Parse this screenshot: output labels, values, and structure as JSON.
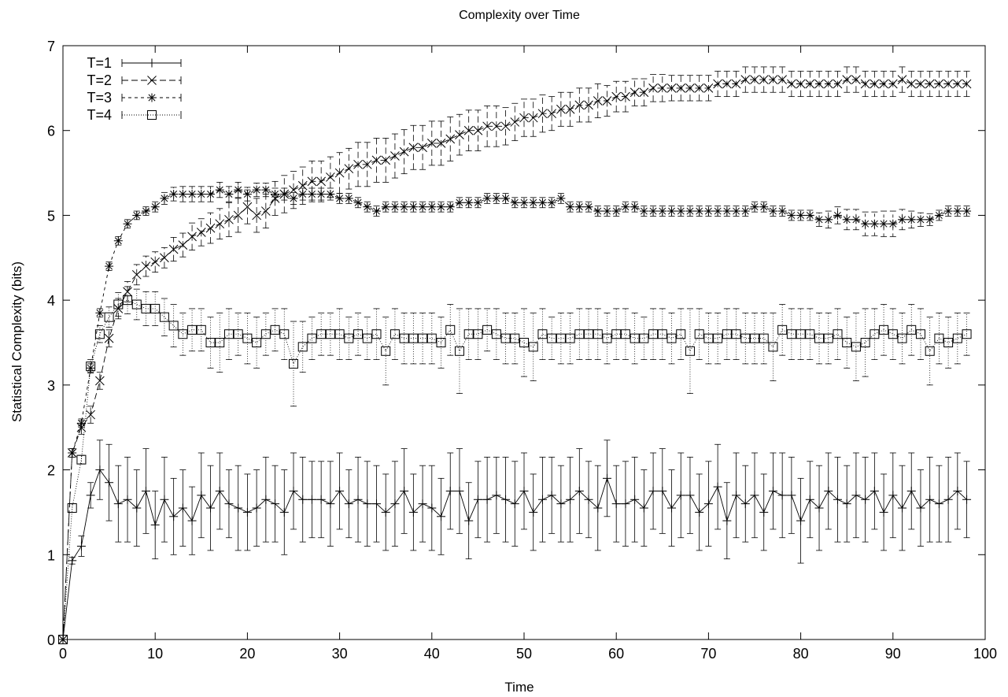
{
  "chart_data": {
    "type": "line",
    "title": "Complexity over Time",
    "xlabel": "Time",
    "ylabel": "Statistical Complexity (bits)",
    "xlim": [
      0,
      100
    ],
    "ylim": [
      0,
      7
    ],
    "xticks": [
      "0",
      "10",
      "20",
      "30",
      "40",
      "50",
      "60",
      "70",
      "80",
      "90",
      "100"
    ],
    "yticks": [
      "0",
      "1",
      "2",
      "3",
      "4",
      "5",
      "6",
      "7"
    ],
    "grid": false,
    "legend_position": "top-left",
    "series": [
      {
        "name": "T=1",
        "marker": "plus",
        "dash": "solid",
        "x": [
          0,
          1,
          2,
          3,
          4,
          5,
          6,
          7,
          8,
          9,
          10,
          11,
          12,
          13,
          14,
          15,
          16,
          17,
          18,
          19,
          20,
          21,
          22,
          23,
          24,
          25,
          26,
          27,
          28,
          29,
          30,
          31,
          32,
          33,
          34,
          35,
          36,
          37,
          38,
          39,
          40,
          41,
          42,
          43,
          44,
          45,
          46,
          47,
          48,
          49,
          50,
          51,
          52,
          53,
          54,
          55,
          56,
          57,
          58,
          59,
          60,
          61,
          62,
          63,
          64,
          65,
          66,
          67,
          68,
          69,
          70,
          71,
          72,
          73,
          74,
          75,
          76,
          77,
          78,
          79,
          80,
          81,
          82,
          83,
          84,
          85,
          86,
          87,
          88,
          89,
          90,
          91,
          92,
          93,
          94,
          95,
          96,
          97,
          98
        ],
        "y": [
          0.0,
          0.93,
          1.1,
          1.7,
          2.0,
          1.85,
          1.6,
          1.65,
          1.55,
          1.75,
          1.35,
          1.65,
          1.45,
          1.55,
          1.4,
          1.7,
          1.55,
          1.75,
          1.6,
          1.55,
          1.5,
          1.55,
          1.65,
          1.6,
          1.5,
          1.75,
          1.65,
          1.65,
          1.65,
          1.6,
          1.75,
          1.6,
          1.65,
          1.6,
          1.6,
          1.5,
          1.6,
          1.75,
          1.5,
          1.6,
          1.55,
          1.45,
          1.75,
          1.75,
          1.4,
          1.65,
          1.65,
          1.7,
          1.65,
          1.6,
          1.75,
          1.5,
          1.65,
          1.7,
          1.6,
          1.65,
          1.75,
          1.65,
          1.55,
          1.9,
          1.6,
          1.6,
          1.65,
          1.55,
          1.75,
          1.75,
          1.55,
          1.7,
          1.7,
          1.5,
          1.6,
          1.8,
          1.4,
          1.7,
          1.6,
          1.7,
          1.5,
          1.75,
          1.7,
          1.7,
          1.4,
          1.65,
          1.55,
          1.75,
          1.65,
          1.6,
          1.7,
          1.65,
          1.75,
          1.5,
          1.7,
          1.55,
          1.75,
          1.55,
          1.65,
          1.6,
          1.65,
          1.75,
          1.65
        ],
        "err": [
          0.0,
          0.04,
          0.12,
          0.15,
          0.35,
          0.45,
          0.45,
          0.5,
          0.45,
          0.5,
          0.4,
          0.5,
          0.45,
          0.45,
          0.4,
          0.5,
          0.5,
          0.45,
          0.4,
          0.5,
          0.45,
          0.45,
          0.5,
          0.45,
          0.5,
          0.45,
          0.5,
          0.45,
          0.45,
          0.5,
          0.45,
          0.4,
          0.5,
          0.5,
          0.45,
          0.45,
          0.5,
          0.5,
          0.45,
          0.45,
          0.5,
          0.45,
          0.45,
          0.5,
          0.45,
          0.45,
          0.5,
          0.45,
          0.5,
          0.5,
          0.45,
          0.45,
          0.5,
          0.45,
          0.45,
          0.5,
          0.5,
          0.45,
          0.5,
          0.45,
          0.45,
          0.5,
          0.5,
          0.45,
          0.45,
          0.5,
          0.45,
          0.5,
          0.45,
          0.45,
          0.5,
          0.5,
          0.45,
          0.5,
          0.45,
          0.5,
          0.45,
          0.45,
          0.5,
          0.45,
          0.5,
          0.45,
          0.5,
          0.45,
          0.5,
          0.45,
          0.5,
          0.5,
          0.45,
          0.45,
          0.5,
          0.5,
          0.45,
          0.45,
          0.5,
          0.45,
          0.5,
          0.45,
          0.45
        ]
      },
      {
        "name": "T=2",
        "marker": "cross",
        "dash": "long",
        "x": [
          0,
          1,
          2,
          3,
          4,
          5,
          6,
          7,
          8,
          9,
          10,
          11,
          12,
          13,
          14,
          15,
          16,
          17,
          18,
          19,
          20,
          21,
          22,
          23,
          24,
          25,
          26,
          27,
          28,
          29,
          30,
          31,
          32,
          33,
          34,
          35,
          36,
          37,
          38,
          39,
          40,
          41,
          42,
          43,
          44,
          45,
          46,
          47,
          48,
          49,
          50,
          51,
          52,
          53,
          54,
          55,
          56,
          57,
          58,
          59,
          60,
          61,
          62,
          63,
          64,
          65,
          66,
          67,
          68,
          69,
          70,
          71,
          72,
          73,
          74,
          75,
          76,
          77,
          78,
          79,
          80,
          81,
          82,
          83,
          84,
          85,
          86,
          87,
          88,
          89,
          90,
          91,
          92,
          93,
          94,
          95,
          96,
          97,
          98
        ],
        "y": [
          0.0,
          2.2,
          2.5,
          2.65,
          3.05,
          3.55,
          3.9,
          4.1,
          4.3,
          4.4,
          4.45,
          4.5,
          4.6,
          4.65,
          4.75,
          4.8,
          4.85,
          4.9,
          4.95,
          5.0,
          5.1,
          5.0,
          5.05,
          5.2,
          5.25,
          5.3,
          5.35,
          5.4,
          5.4,
          5.45,
          5.5,
          5.55,
          5.6,
          5.6,
          5.65,
          5.65,
          5.7,
          5.75,
          5.8,
          5.8,
          5.85,
          5.85,
          5.9,
          5.95,
          6.0,
          6.0,
          6.05,
          6.05,
          6.05,
          6.1,
          6.15,
          6.15,
          6.2,
          6.2,
          6.25,
          6.25,
          6.3,
          6.3,
          6.35,
          6.35,
          6.4,
          6.4,
          6.45,
          6.45,
          6.5,
          6.5,
          6.5,
          6.5,
          6.5,
          6.5,
          6.5,
          6.55,
          6.55,
          6.55,
          6.6,
          6.6,
          6.6,
          6.6,
          6.6,
          6.55,
          6.55,
          6.55,
          6.55,
          6.55,
          6.55,
          6.6,
          6.6,
          6.55,
          6.55,
          6.55,
          6.55,
          6.6,
          6.55,
          6.55,
          6.55,
          6.55,
          6.55,
          6.55,
          6.55
        ],
        "err": [
          0.0,
          0.05,
          0.08,
          0.1,
          0.1,
          0.1,
          0.12,
          0.12,
          0.12,
          0.12,
          0.12,
          0.12,
          0.14,
          0.14,
          0.16,
          0.16,
          0.18,
          0.18,
          0.2,
          0.2,
          0.2,
          0.2,
          0.2,
          0.2,
          0.22,
          0.22,
          0.22,
          0.24,
          0.24,
          0.24,
          0.24,
          0.24,
          0.26,
          0.26,
          0.26,
          0.26,
          0.26,
          0.26,
          0.26,
          0.26,
          0.26,
          0.26,
          0.26,
          0.24,
          0.24,
          0.24,
          0.24,
          0.24,
          0.22,
          0.22,
          0.22,
          0.22,
          0.22,
          0.2,
          0.2,
          0.2,
          0.2,
          0.2,
          0.2,
          0.18,
          0.18,
          0.18,
          0.16,
          0.16,
          0.16,
          0.16,
          0.15,
          0.15,
          0.15,
          0.15,
          0.15,
          0.15,
          0.15,
          0.15,
          0.15,
          0.15,
          0.15,
          0.15,
          0.15,
          0.15,
          0.15,
          0.15,
          0.15,
          0.15,
          0.15,
          0.15,
          0.15,
          0.15,
          0.15,
          0.15,
          0.15,
          0.15,
          0.15,
          0.15,
          0.15,
          0.15,
          0.15,
          0.15,
          0.15
        ]
      },
      {
        "name": "T=3",
        "marker": "star",
        "dash": "short",
        "x": [
          0,
          1,
          2,
          3,
          4,
          5,
          6,
          7,
          8,
          9,
          10,
          11,
          12,
          13,
          14,
          15,
          16,
          17,
          18,
          19,
          20,
          21,
          22,
          23,
          24,
          25,
          26,
          27,
          28,
          29,
          30,
          31,
          32,
          33,
          34,
          35,
          36,
          37,
          38,
          39,
          40,
          41,
          42,
          43,
          44,
          45,
          46,
          47,
          48,
          49,
          50,
          51,
          52,
          53,
          54,
          55,
          56,
          57,
          58,
          59,
          60,
          61,
          62,
          63,
          64,
          65,
          66,
          67,
          68,
          69,
          70,
          71,
          72,
          73,
          74,
          75,
          76,
          77,
          78,
          79,
          80,
          81,
          82,
          83,
          84,
          85,
          86,
          87,
          88,
          89,
          90,
          91,
          92,
          93,
          94,
          95,
          96,
          97,
          98
        ],
        "y": [
          0.0,
          2.2,
          2.55,
          3.2,
          3.85,
          4.4,
          4.7,
          4.9,
          5.0,
          5.05,
          5.1,
          5.2,
          5.25,
          5.25,
          5.25,
          5.25,
          5.25,
          5.3,
          5.25,
          5.3,
          5.25,
          5.3,
          5.3,
          5.25,
          5.25,
          5.2,
          5.25,
          5.25,
          5.25,
          5.25,
          5.2,
          5.2,
          5.15,
          5.1,
          5.05,
          5.1,
          5.1,
          5.1,
          5.1,
          5.1,
          5.1,
          5.1,
          5.1,
          5.15,
          5.15,
          5.15,
          5.2,
          5.2,
          5.2,
          5.15,
          5.15,
          5.15,
          5.15,
          5.15,
          5.2,
          5.1,
          5.1,
          5.1,
          5.05,
          5.05,
          5.05,
          5.1,
          5.1,
          5.05,
          5.05,
          5.05,
          5.05,
          5.05,
          5.05,
          5.05,
          5.05,
          5.05,
          5.05,
          5.05,
          5.05,
          5.1,
          5.1,
          5.05,
          5.05,
          5.0,
          5.0,
          5.0,
          4.95,
          4.95,
          5.0,
          4.95,
          4.95,
          4.9,
          4.9,
          4.9,
          4.9,
          4.95,
          4.95,
          4.95,
          4.95,
          5.0,
          5.05,
          5.05,
          5.05
        ],
        "err": [
          0.0,
          0.05,
          0.05,
          0.05,
          0.05,
          0.05,
          0.05,
          0.05,
          0.05,
          0.05,
          0.06,
          0.07,
          0.08,
          0.09,
          0.09,
          0.09,
          0.09,
          0.09,
          0.09,
          0.09,
          0.08,
          0.08,
          0.08,
          0.07,
          0.07,
          0.07,
          0.07,
          0.07,
          0.07,
          0.07,
          0.06,
          0.06,
          0.06,
          0.06,
          0.06,
          0.06,
          0.06,
          0.06,
          0.06,
          0.06,
          0.06,
          0.06,
          0.06,
          0.06,
          0.06,
          0.06,
          0.06,
          0.06,
          0.06,
          0.06,
          0.06,
          0.06,
          0.06,
          0.06,
          0.06,
          0.06,
          0.06,
          0.06,
          0.06,
          0.06,
          0.06,
          0.06,
          0.06,
          0.06,
          0.06,
          0.06,
          0.06,
          0.06,
          0.06,
          0.06,
          0.06,
          0.06,
          0.06,
          0.06,
          0.06,
          0.06,
          0.06,
          0.06,
          0.06,
          0.06,
          0.06,
          0.06,
          0.08,
          0.1,
          0.1,
          0.12,
          0.12,
          0.14,
          0.14,
          0.15,
          0.15,
          0.12,
          0.1,
          0.08,
          0.07,
          0.06,
          0.06,
          0.06,
          0.06
        ]
      },
      {
        "name": "T=4",
        "marker": "square",
        "dash": "dotted",
        "x": [
          0,
          1,
          2,
          3,
          4,
          5,
          6,
          7,
          8,
          9,
          10,
          11,
          12,
          13,
          14,
          15,
          16,
          17,
          18,
          19,
          20,
          21,
          22,
          23,
          24,
          25,
          26,
          27,
          28,
          29,
          30,
          31,
          32,
          33,
          34,
          35,
          36,
          37,
          38,
          39,
          40,
          41,
          42,
          43,
          44,
          45,
          46,
          47,
          48,
          49,
          50,
          51,
          52,
          53,
          54,
          55,
          56,
          57,
          58,
          59,
          60,
          61,
          62,
          63,
          64,
          65,
          66,
          67,
          68,
          69,
          70,
          71,
          72,
          73,
          74,
          75,
          76,
          77,
          78,
          79,
          80,
          81,
          82,
          83,
          84,
          85,
          86,
          87,
          88,
          89,
          90,
          91,
          92,
          93,
          94,
          95,
          96,
          97,
          98
        ],
        "y": [
          0.0,
          1.55,
          2.12,
          3.22,
          3.6,
          3.8,
          3.95,
          4.0,
          3.95,
          3.9,
          3.9,
          3.8,
          3.7,
          3.6,
          3.65,
          3.65,
          3.5,
          3.5,
          3.6,
          3.6,
          3.55,
          3.5,
          3.6,
          3.65,
          3.6,
          3.25,
          3.45,
          3.55,
          3.6,
          3.6,
          3.6,
          3.55,
          3.6,
          3.55,
          3.6,
          3.4,
          3.6,
          3.55,
          3.55,
          3.55,
          3.55,
          3.5,
          3.65,
          3.4,
          3.6,
          3.6,
          3.65,
          3.6,
          3.55,
          3.55,
          3.5,
          3.45,
          3.6,
          3.55,
          3.55,
          3.55,
          3.6,
          3.6,
          3.6,
          3.55,
          3.6,
          3.6,
          3.55,
          3.55,
          3.6,
          3.6,
          3.55,
          3.6,
          3.4,
          3.6,
          3.55,
          3.55,
          3.6,
          3.6,
          3.55,
          3.55,
          3.55,
          3.45,
          3.65,
          3.6,
          3.6,
          3.6,
          3.55,
          3.55,
          3.6,
          3.5,
          3.45,
          3.5,
          3.6,
          3.65,
          3.6,
          3.55,
          3.65,
          3.6,
          3.4,
          3.55,
          3.5,
          3.55,
          3.6
        ],
        "err": [
          0.0,
          0.05,
          0.05,
          0.08,
          0.1,
          0.12,
          0.14,
          0.16,
          0.18,
          0.2,
          0.2,
          0.22,
          0.25,
          0.25,
          0.25,
          0.25,
          0.3,
          0.35,
          0.3,
          0.25,
          0.3,
          0.3,
          0.25,
          0.25,
          0.3,
          0.5,
          0.3,
          0.25,
          0.25,
          0.25,
          0.3,
          0.25,
          0.25,
          0.25,
          0.3,
          0.4,
          0.3,
          0.3,
          0.3,
          0.3,
          0.3,
          0.3,
          0.3,
          0.5,
          0.3,
          0.3,
          0.25,
          0.3,
          0.3,
          0.3,
          0.4,
          0.4,
          0.3,
          0.25,
          0.3,
          0.3,
          0.3,
          0.3,
          0.3,
          0.3,
          0.3,
          0.3,
          0.3,
          0.25,
          0.3,
          0.3,
          0.3,
          0.3,
          0.5,
          0.3,
          0.3,
          0.3,
          0.3,
          0.3,
          0.3,
          0.3,
          0.3,
          0.4,
          0.3,
          0.3,
          0.3,
          0.3,
          0.3,
          0.3,
          0.3,
          0.3,
          0.4,
          0.4,
          0.3,
          0.3,
          0.3,
          0.3,
          0.3,
          0.3,
          0.4,
          0.3,
          0.3,
          0.3,
          0.25
        ]
      }
    ]
  }
}
